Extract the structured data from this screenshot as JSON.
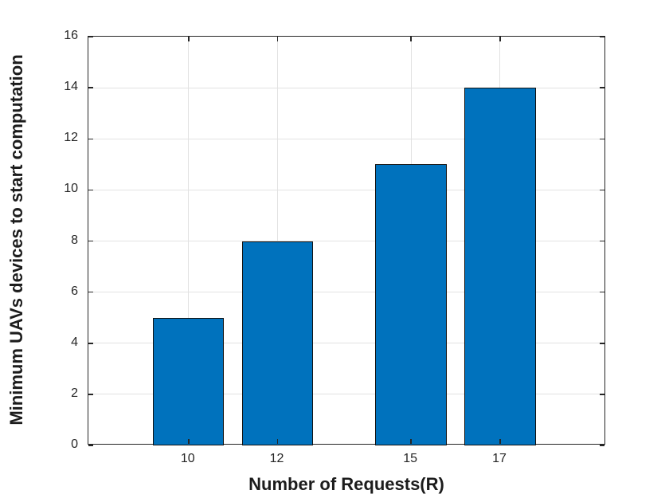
{
  "chart_data": {
    "type": "bar",
    "x": [
      10,
      12,
      15,
      17
    ],
    "categories": [
      "10",
      "12",
      "15",
      "17"
    ],
    "values": [
      5,
      8,
      11,
      14
    ],
    "title": "",
    "xlabel": "Number of Requests(R)",
    "ylabel": "Minimum UAVs devices to start computation",
    "xticks": [
      10,
      12,
      15,
      17
    ],
    "yticks": [
      0,
      2,
      4,
      6,
      8,
      10,
      12,
      14,
      16
    ],
    "xlim": [
      7.75,
      19.38
    ],
    "ylim": [
      0,
      16
    ],
    "bar_width_units": 1.6,
    "grid": true,
    "legend": "none",
    "colors": {
      "bar_fill": "#0072BD",
      "bar_edge": "#111111",
      "axis": "#262626",
      "grid": "#e2e2e2",
      "tick_label": "#262626",
      "axis_label": "#1c1c1c",
      "background": "#ffffff"
    }
  }
}
